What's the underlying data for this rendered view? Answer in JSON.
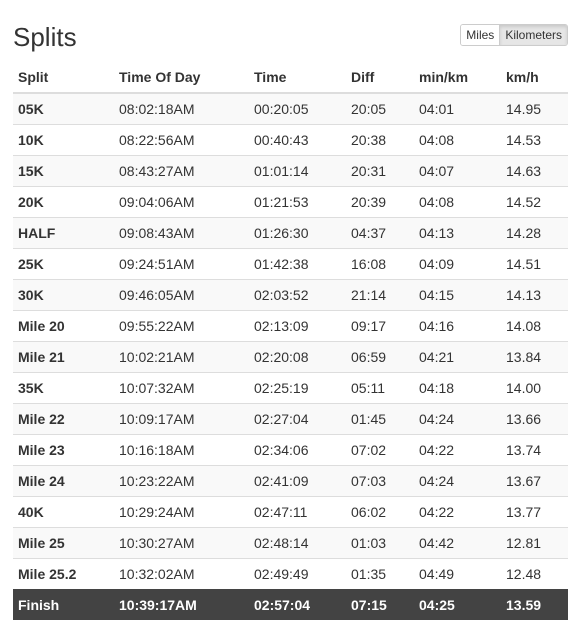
{
  "header": {
    "title": "Splits",
    "unit_toggle": {
      "miles_label": "Miles",
      "kilometers_label": "Kilometers",
      "selected": "Kilometers"
    }
  },
  "table": {
    "columns": [
      "Split",
      "Time Of Day",
      "Time",
      "Diff",
      "min/km",
      "km/h"
    ],
    "rows": [
      [
        "05K",
        "08:02:18AM",
        "00:20:05",
        "20:05",
        "04:01",
        "14.95"
      ],
      [
        "10K",
        "08:22:56AM",
        "00:40:43",
        "20:38",
        "04:08",
        "14.53"
      ],
      [
        "15K",
        "08:43:27AM",
        "01:01:14",
        "20:31",
        "04:07",
        "14.63"
      ],
      [
        "20K",
        "09:04:06AM",
        "01:21:53",
        "20:39",
        "04:08",
        "14.52"
      ],
      [
        "HALF",
        "09:08:43AM",
        "01:26:30",
        "04:37",
        "04:13",
        "14.28"
      ],
      [
        "25K",
        "09:24:51AM",
        "01:42:38",
        "16:08",
        "04:09",
        "14.51"
      ],
      [
        "30K",
        "09:46:05AM",
        "02:03:52",
        "21:14",
        "04:15",
        "14.13"
      ],
      [
        "Mile 20",
        "09:55:22AM",
        "02:13:09",
        "09:17",
        "04:16",
        "14.08"
      ],
      [
        "Mile 21",
        "10:02:21AM",
        "02:20:08",
        "06:59",
        "04:21",
        "13.84"
      ],
      [
        "35K",
        "10:07:32AM",
        "02:25:19",
        "05:11",
        "04:18",
        "14.00"
      ],
      [
        "Mile 22",
        "10:09:17AM",
        "02:27:04",
        "01:45",
        "04:24",
        "13.66"
      ],
      [
        "Mile 23",
        "10:16:18AM",
        "02:34:06",
        "07:02",
        "04:22",
        "13.74"
      ],
      [
        "Mile 24",
        "10:23:22AM",
        "02:41:09",
        "07:03",
        "04:24",
        "13.67"
      ],
      [
        "40K",
        "10:29:24AM",
        "02:47:11",
        "06:02",
        "04:22",
        "13.77"
      ],
      [
        "Mile 25",
        "10:30:27AM",
        "02:48:14",
        "01:03",
        "04:42",
        "12.81"
      ],
      [
        "Mile 25.2",
        "10:32:02AM",
        "02:49:49",
        "01:35",
        "04:49",
        "12.48"
      ]
    ],
    "finish": [
      "Finish",
      "10:39:17AM",
      "02:57:04",
      "07:15",
      "04:25",
      "13.59"
    ]
  },
  "colors": {
    "finish_row_bg": "#434343",
    "stripe_bg": "#f9f9f9",
    "border": "#dddddd",
    "text": "#333333"
  }
}
